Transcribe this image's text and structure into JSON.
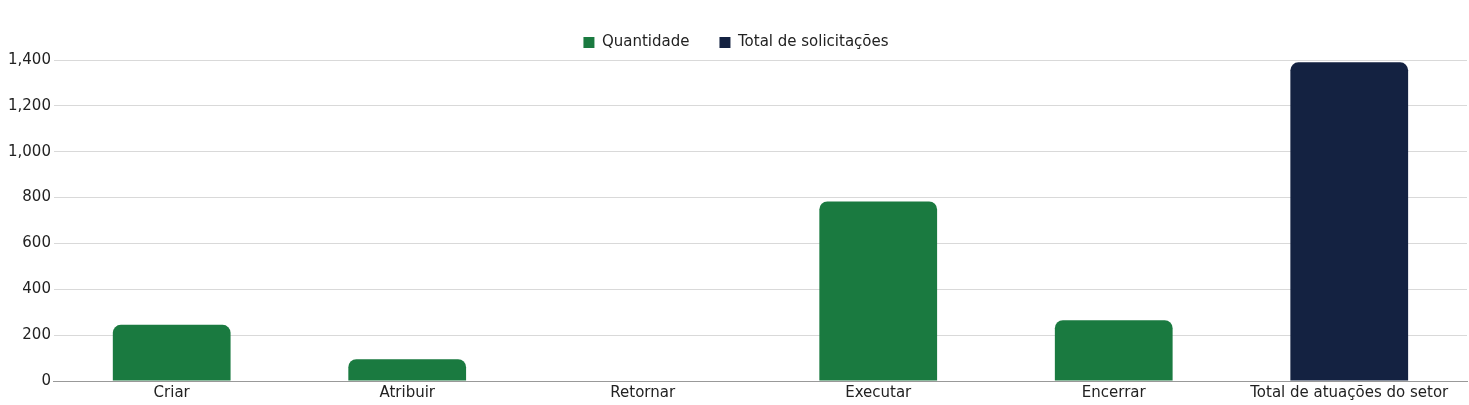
{
  "chart_data": {
    "type": "bar",
    "categories": [
      "Criar",
      "Atribuir",
      "Retornar",
      "Executar",
      "Encerrar",
      "Total de atuações do setor"
    ],
    "series": [
      {
        "name": "Quantidade",
        "color": "#1a7a40",
        "values": [
          245,
          95,
          0,
          783,
          265,
          null
        ]
      },
      {
        "name": "Total de solicitações",
        "color": "#142241",
        "values": [
          null,
          null,
          null,
          null,
          null,
          1390
        ]
      }
    ],
    "ylim": [
      0,
      1400
    ],
    "yticks": [
      0,
      200,
      400,
      600,
      800,
      {
        "value": 1000,
        "label": "1,000"
      },
      {
        "value": 1200,
        "label": "1,200"
      },
      {
        "value": 1400,
        "label": "1,400"
      }
    ],
    "grid": "y",
    "legend": "top"
  }
}
